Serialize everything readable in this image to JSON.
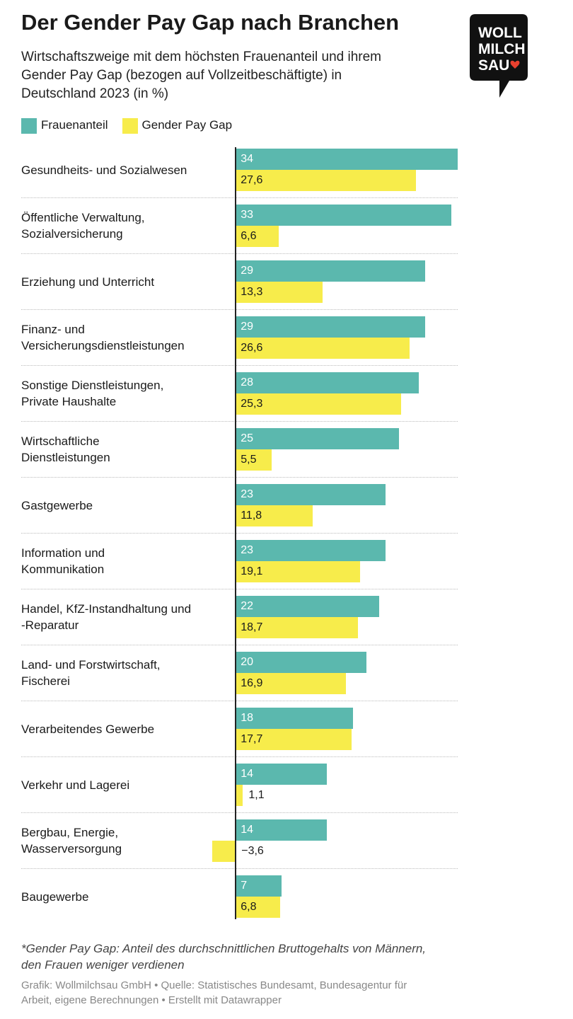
{
  "chart_data": {
    "type": "bar",
    "title": "Der Gender Pay Gap nach Branchen",
    "subtitle": [
      "Wirtschaftszweige mit dem höchsten Frauenanteil und ihrem",
      "Gender Pay Gap (bezogen auf Vollzeitbeschäftigte) in",
      "Deutschland 2023 (in %)"
    ],
    "logo": [
      "WOLL",
      "MILCH",
      "SAU"
    ],
    "categories": [
      "Gesundheits- und Sozialwesen",
      "Öffentliche Verwaltung,\nSozialversicherung",
      "Erziehung und Unterricht",
      "Finanz- und\nVersicherungsdienstleistungen",
      "Sonstige Dienstleistungen,\nPrivate Haushalte",
      "Wirtschaftliche\nDienstleistungen",
      "Gastgewerbe",
      "Information und\nKommunikation",
      "Handel, KfZ-Instandhaltung und\n-Reparatur",
      "Land- und Forstwirtschaft,\nFischerei",
      "Verarbeitendes Gewerbe",
      "Verkehr und Lagerei",
      "Bergbau, Energie,\nWasserversorgung",
      "Baugewerbe"
    ],
    "series": [
      {
        "name": "Frauenanteil",
        "color": "#5bb8ae",
        "values": [
          34,
          33,
          29,
          29,
          28,
          25,
          23,
          23,
          22,
          20,
          18,
          14,
          14,
          7
        ],
        "value_labels": [
          "34",
          "33",
          "29",
          "29",
          "28",
          "25",
          "23",
          "23",
          "22",
          "20",
          "18",
          "14",
          "14",
          "7"
        ]
      },
      {
        "name": "Gender Pay Gap",
        "color": "#f7ec4b",
        "values": [
          27.6,
          6.6,
          13.3,
          26.6,
          25.3,
          5.5,
          11.8,
          19.1,
          18.7,
          16.9,
          17.7,
          1.1,
          -3.6,
          6.8
        ],
        "value_labels": [
          "27,6",
          "6,6",
          "13,3",
          "26,6",
          "25,3",
          "5,5",
          "11,8",
          "19,1",
          "18,7",
          "16,9",
          "17,7",
          "1,1",
          "−3,6",
          "6,8"
        ]
      }
    ],
    "footnote": [
      "*Gender Pay Gap: Anteil des durchschnittlichen Bruttogehalts von Männern,",
      "den Frauen weniger verdienen"
    ],
    "source": [
      "Grafik: Wollmilchsau GmbH • Quelle: Statistisches Bundesamt, Bundesagentur für",
      "Arbeit, eigene Berechnungen • Erstellt mit Datawrapper"
    ]
  }
}
